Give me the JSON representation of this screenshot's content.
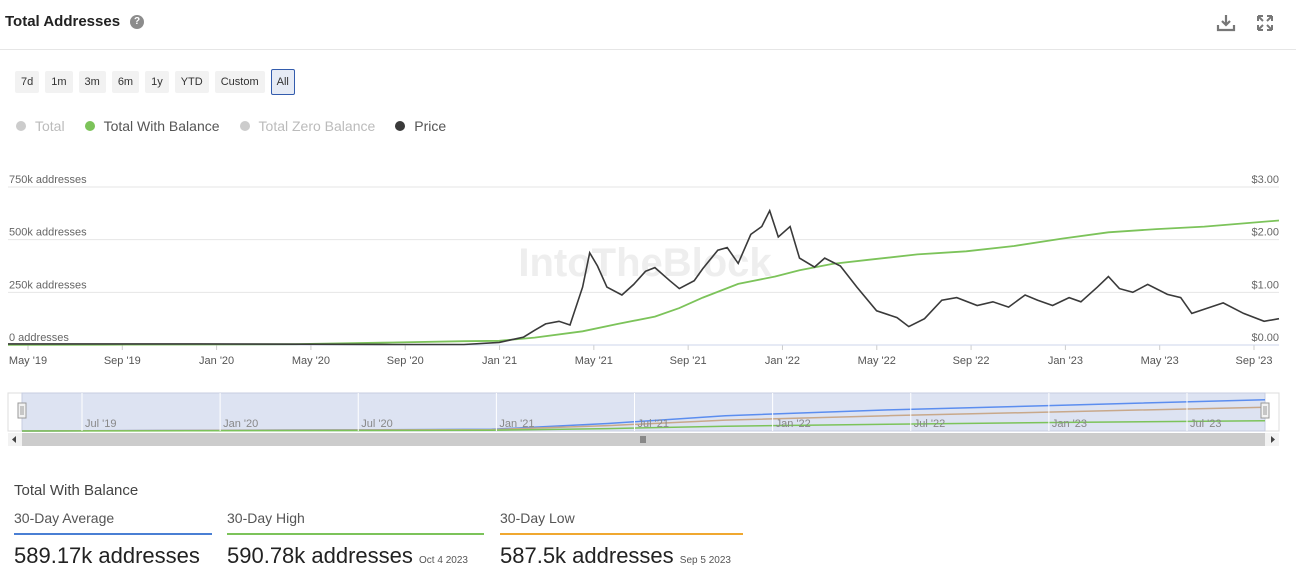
{
  "header": {
    "title": "Total Addresses",
    "help_icon": "?"
  },
  "ranges": [
    "7d",
    "1m",
    "3m",
    "6m",
    "1y",
    "YTD",
    "Custom",
    "All"
  ],
  "active_range": "All",
  "legend": [
    {
      "label": "Total",
      "color": "#cccccc",
      "enabled": false
    },
    {
      "label": "Total With Balance",
      "color": "#7cc35a",
      "enabled": true
    },
    {
      "label": "Total Zero Balance",
      "color": "#cccccc",
      "enabled": false
    },
    {
      "label": "Price",
      "color": "#3a3a3a",
      "enabled": true
    }
  ],
  "watermark": "IntoTheBlock",
  "chart_data": {
    "type": "line",
    "x_range": [
      "2019-05-01",
      "2023-10-04"
    ],
    "x_ticks": [
      "May '19",
      "Sep '19",
      "Jan '20",
      "May '20",
      "Sep '20",
      "Jan '21",
      "May '21",
      "Sep '21",
      "Jan '22",
      "May '22",
      "Sep '22",
      "Jan '23",
      "May '23",
      "Sep '23"
    ],
    "y_left": {
      "ticks": [
        "0 addresses",
        "250k addresses",
        "500k addresses",
        "750k addresses"
      ],
      "range": [
        0,
        750000
      ]
    },
    "y_right": {
      "ticks": [
        "$0.00",
        "$1.00",
        "$2.00",
        "$3.00"
      ],
      "range": [
        0,
        3
      ]
    },
    "grid": true,
    "series": [
      {
        "name": "Total With Balance",
        "axis": "left",
        "color": "#7cc35a",
        "points": [
          [
            "2019-05-01",
            1000
          ],
          [
            "2019-09-01",
            1500
          ],
          [
            "2020-01-01",
            2500
          ],
          [
            "2020-05-01",
            4000
          ],
          [
            "2020-09-01",
            12000
          ],
          [
            "2020-12-01",
            18000
          ],
          [
            "2021-01-15",
            20000
          ],
          [
            "2021-03-01",
            35000
          ],
          [
            "2021-05-01",
            65000
          ],
          [
            "2021-06-15",
            100000
          ],
          [
            "2021-08-01",
            135000
          ],
          [
            "2021-09-01",
            175000
          ],
          [
            "2021-10-01",
            225000
          ],
          [
            "2021-11-15",
            290000
          ],
          [
            "2022-01-01",
            325000
          ],
          [
            "2022-02-01",
            355000
          ],
          [
            "2022-03-15",
            385000
          ],
          [
            "2022-05-01",
            405000
          ],
          [
            "2022-07-01",
            430000
          ],
          [
            "2022-09-01",
            445000
          ],
          [
            "2022-11-01",
            470000
          ],
          [
            "2023-01-01",
            505000
          ],
          [
            "2023-03-01",
            535000
          ],
          [
            "2023-05-01",
            550000
          ],
          [
            "2023-07-01",
            562000
          ],
          [
            "2023-10-04",
            590780
          ]
        ]
      },
      {
        "name": "Price",
        "axis": "right",
        "color": "#3a3a3a",
        "points": [
          [
            "2019-05-01",
            0.02
          ],
          [
            "2020-01-01",
            0.02
          ],
          [
            "2020-09-01",
            0.01
          ],
          [
            "2020-12-01",
            0.01
          ],
          [
            "2021-01-15",
            0.05
          ],
          [
            "2021-02-15",
            0.15
          ],
          [
            "2021-03-01",
            0.28
          ],
          [
            "2021-03-15",
            0.4
          ],
          [
            "2021-04-01",
            0.45
          ],
          [
            "2021-04-15",
            0.38
          ],
          [
            "2021-05-01",
            1.1
          ],
          [
            "2021-05-10",
            1.75
          ],
          [
            "2021-05-20",
            1.5
          ],
          [
            "2021-06-01",
            1.1
          ],
          [
            "2021-06-20",
            0.95
          ],
          [
            "2021-07-05",
            1.15
          ],
          [
            "2021-07-20",
            1.4
          ],
          [
            "2021-08-01",
            1.47
          ],
          [
            "2021-08-20",
            1.22
          ],
          [
            "2021-09-01",
            1.07
          ],
          [
            "2021-09-20",
            1.22
          ],
          [
            "2021-10-01",
            1.45
          ],
          [
            "2021-10-20",
            1.8
          ],
          [
            "2021-11-01",
            1.85
          ],
          [
            "2021-11-15",
            1.55
          ],
          [
            "2021-12-01",
            2.1
          ],
          [
            "2021-12-15",
            2.25
          ],
          [
            "2021-12-25",
            2.55
          ],
          [
            "2022-01-05",
            2.05
          ],
          [
            "2022-01-20",
            2.25
          ],
          [
            "2022-02-01",
            1.65
          ],
          [
            "2022-02-20",
            1.48
          ],
          [
            "2022-03-05",
            1.65
          ],
          [
            "2022-03-25",
            1.5
          ],
          [
            "2022-04-15",
            1.1
          ],
          [
            "2022-05-10",
            0.65
          ],
          [
            "2022-06-05",
            0.52
          ],
          [
            "2022-06-20",
            0.35
          ],
          [
            "2022-07-10",
            0.5
          ],
          [
            "2022-08-01",
            0.85
          ],
          [
            "2022-08-20",
            0.9
          ],
          [
            "2022-09-15",
            0.75
          ],
          [
            "2022-10-05",
            0.82
          ],
          [
            "2022-10-25",
            0.72
          ],
          [
            "2022-11-15",
            0.95
          ],
          [
            "2022-12-01",
            0.85
          ],
          [
            "2022-12-20",
            0.75
          ],
          [
            "2023-01-10",
            0.9
          ],
          [
            "2023-01-25",
            0.82
          ],
          [
            "2023-02-15",
            1.1
          ],
          [
            "2023-03-01",
            1.3
          ],
          [
            "2023-03-15",
            1.07
          ],
          [
            "2023-04-01",
            1.0
          ],
          [
            "2023-04-20",
            1.15
          ],
          [
            "2023-05-15",
            0.96
          ],
          [
            "2023-06-01",
            0.9
          ],
          [
            "2023-06-15",
            0.6
          ],
          [
            "2023-07-05",
            0.7
          ],
          [
            "2023-07-25",
            0.8
          ],
          [
            "2023-08-20",
            0.6
          ],
          [
            "2023-09-15",
            0.45
          ],
          [
            "2023-10-04",
            0.5
          ]
        ]
      }
    ],
    "navigator": {
      "x_ticks": [
        "Jul '19",
        "Jan '20",
        "Jul '20",
        "Jan '21",
        "Jul '21",
        "Jan '22",
        "Jul '22",
        "Jan '23",
        "Jul '23"
      ],
      "series": [
        {
          "color": "#5b8def",
          "points": [
            [
              "2019-05-01",
              0
            ],
            [
              "2021-01-01",
              0.05
            ],
            [
              "2021-06-01",
              0.22
            ],
            [
              "2021-11-01",
              0.45
            ],
            [
              "2022-06-01",
              0.62
            ],
            [
              "2023-01-01",
              0.75
            ],
            [
              "2023-10-04",
              0.92
            ]
          ]
        },
        {
          "color": "#c8a88a",
          "points": [
            [
              "2019-05-01",
              0
            ],
            [
              "2021-01-01",
              0.04
            ],
            [
              "2021-06-01",
              0.16
            ],
            [
              "2021-11-01",
              0.32
            ],
            [
              "2022-06-01",
              0.45
            ],
            [
              "2023-01-01",
              0.56
            ],
            [
              "2023-10-04",
              0.7
            ]
          ]
        },
        {
          "color": "#7cc35a",
          "points": [
            [
              "2019-05-01",
              0
            ],
            [
              "2021-01-01",
              0.02
            ],
            [
              "2021-06-01",
              0.07
            ],
            [
              "2021-11-01",
              0.14
            ],
            [
              "2022-06-01",
              0.2
            ],
            [
              "2023-01-01",
              0.25
            ],
            [
              "2023-10-04",
              0.3
            ]
          ]
        }
      ]
    }
  },
  "summary": {
    "title": "Total With Balance",
    "stats": [
      {
        "label": "30-Day Average",
        "value": "589.17k addresses",
        "date": "",
        "color": "#4a7fd4"
      },
      {
        "label": "30-Day High",
        "value": "590.78k addresses",
        "date": "Oct 4 2023",
        "color": "#7cc35a"
      },
      {
        "label": "30-Day Low",
        "value": "587.5k addresses",
        "date": "Sep 5 2023",
        "color": "#f0a830"
      }
    ]
  }
}
